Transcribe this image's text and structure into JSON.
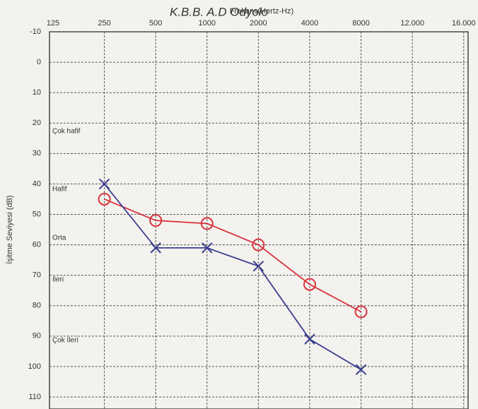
{
  "chart_data": {
    "type": "audiogram",
    "title": "K.B.B. A.D Odyolo",
    "x_label": "Frekans(Hertz-Hz)",
    "y_label": "İşitme Seviyesi (dB)",
    "categories": [
      "125",
      "250",
      "500",
      "1000",
      "2000",
      "4000",
      "8000",
      "12.000",
      "16.000"
    ],
    "ylim": [
      -10,
      110
    ],
    "yticks": [
      -10,
      0,
      10,
      20,
      30,
      40,
      50,
      60,
      70,
      80,
      90,
      100,
      110
    ],
    "y_inverted": true,
    "grid": true,
    "annotations": [
      "Çok hafif",
      "Hafif",
      "Orta",
      "İleri",
      "Çok İleri"
    ],
    "series": [
      {
        "color": "#d8343f",
        "marker": "circle",
        "values": [
          null,
          45,
          52,
          53,
          60,
          73,
          82,
          null,
          null
        ]
      },
      {
        "color": "#3a3f8f",
        "marker": "x",
        "values": [
          null,
          40,
          61,
          61,
          67,
          91,
          101,
          null,
          null
        ]
      }
    ]
  }
}
